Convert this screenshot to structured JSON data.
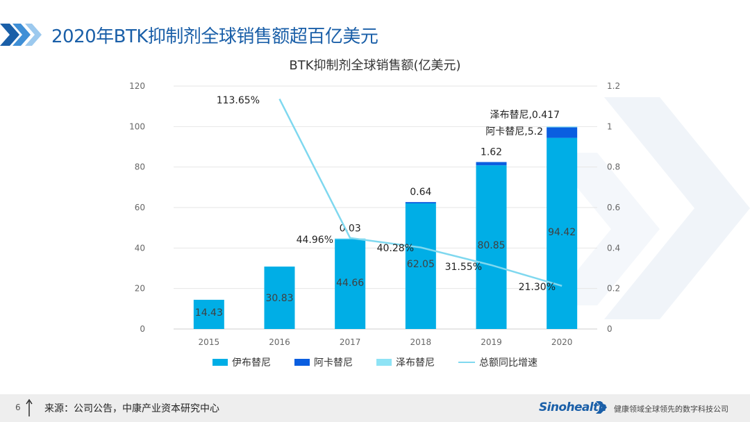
{
  "slide": {
    "title": "2020年BTK抑制剂全球销售额超百亿美元",
    "page_number": "6",
    "source": "来源：公司公告，中康产业资本研究中心",
    "logo": "Sinohealth",
    "slogan": "健康领域全球领先的数字科技公司"
  },
  "colors": {
    "ibrutinib": "#00aee6",
    "acalabrutinib": "#0a5ee0",
    "zanubrutinib": "#8ee3f5",
    "growth_line": "#7fd8ef",
    "title": "#1a5fa8"
  },
  "chart_data": {
    "type": "bar",
    "stacked": true,
    "title": "BTK抑制剂全球销售额(亿美元)",
    "categories": [
      "2015",
      "2016",
      "2017",
      "2018",
      "2019",
      "2020"
    ],
    "series": [
      {
        "name": "伊布替尼",
        "type": "bar",
        "axis": "left",
        "values": [
          14.43,
          30.83,
          44.66,
          62.05,
          80.85,
          94.42
        ]
      },
      {
        "name": "阿卡替尼",
        "type": "bar",
        "axis": "left",
        "values": [
          0,
          0,
          0,
          0.64,
          1.62,
          5.2
        ]
      },
      {
        "name": "泽布替尼",
        "type": "bar",
        "axis": "left",
        "values": [
          0,
          0,
          0.03,
          0,
          0,
          0.417
        ]
      },
      {
        "name": "总额同比增速",
        "type": "line",
        "axis": "right",
        "values": [
          null,
          1.1365,
          0.4496,
          0.4028,
          0.3155,
          0.213
        ]
      }
    ],
    "data_labels": {
      "ibrutinib": [
        "14.43",
        "30.83",
        "44.66",
        "62.05",
        "80.85",
        "94.42"
      ],
      "top": [
        "",
        "",
        "0.03",
        "0.64",
        "1.62",
        ""
      ],
      "acalabrutinib_2020": "阿卡替尼,5.2",
      "zanubrutinib_2020": "泽布替尼,0.417",
      "growth": [
        "",
        "113.65%",
        "44.96%",
        "40.28%",
        "31.55%",
        "21.30%"
      ]
    },
    "ylim": [
      0,
      120
    ],
    "yticks": [
      "0",
      "20",
      "40",
      "60",
      "80",
      "100",
      "120"
    ],
    "y2lim": [
      0,
      1.2
    ],
    "y2ticks": [
      "0",
      "0.2",
      "0.4",
      "0.6",
      "0.8",
      "1",
      "1.2"
    ],
    "grid": true,
    "legend_position": "bottom"
  }
}
